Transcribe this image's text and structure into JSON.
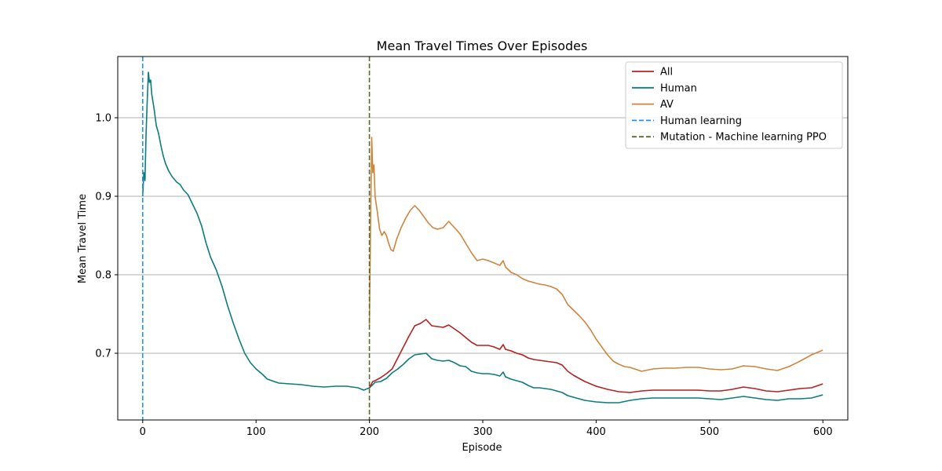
{
  "chart_data": {
    "type": "line",
    "title": "Mean Travel Times Over Episodes",
    "xlabel": "Episode",
    "ylabel": "Mean Travel Time",
    "xlim": [
      -22,
      622
    ],
    "ylim": [
      0.615,
      1.078
    ],
    "xticks": [
      0,
      100,
      200,
      300,
      400,
      500,
      600
    ],
    "yticks": [
      0.7,
      0.8,
      0.9,
      1.0
    ],
    "ytick_labels": [
      "0.7",
      "0.8",
      "0.9",
      "1.0"
    ],
    "grid": "y-major",
    "legend_position": "upper-right",
    "series": [
      {
        "name": "Human",
        "color": "#0e7c7b",
        "points": [
          [
            0,
            0.9
          ],
          [
            1,
            0.93
          ],
          [
            2,
            0.92
          ],
          [
            3,
            0.98
          ],
          [
            4,
            1.02
          ],
          [
            5,
            1.058
          ],
          [
            6,
            1.045
          ],
          [
            7,
            1.048
          ],
          [
            8,
            1.03
          ],
          [
            10,
            1.012
          ],
          [
            12,
            0.99
          ],
          [
            14,
            0.98
          ],
          [
            16,
            0.965
          ],
          [
            18,
            0.952
          ],
          [
            20,
            0.942
          ],
          [
            23,
            0.932
          ],
          [
            26,
            0.925
          ],
          [
            30,
            0.918
          ],
          [
            33,
            0.915
          ],
          [
            36,
            0.908
          ],
          [
            40,
            0.902
          ],
          [
            44,
            0.89
          ],
          [
            48,
            0.878
          ],
          [
            52,
            0.862
          ],
          [
            56,
            0.84
          ],
          [
            60,
            0.822
          ],
          [
            65,
            0.806
          ],
          [
            70,
            0.785
          ],
          [
            75,
            0.76
          ],
          [
            80,
            0.738
          ],
          [
            85,
            0.718
          ],
          [
            90,
            0.7
          ],
          [
            95,
            0.688
          ],
          [
            100,
            0.68
          ],
          [
            105,
            0.674
          ],
          [
            110,
            0.667
          ],
          [
            120,
            0.662
          ],
          [
            130,
            0.661
          ],
          [
            140,
            0.66
          ],
          [
            150,
            0.658
          ],
          [
            160,
            0.657
          ],
          [
            170,
            0.658
          ],
          [
            180,
            0.658
          ],
          [
            190,
            0.656
          ],
          [
            195,
            0.653
          ],
          [
            200,
            0.656
          ],
          [
            203,
            0.66
          ],
          [
            205,
            0.663
          ],
          [
            210,
            0.664
          ],
          [
            215,
            0.668
          ],
          [
            220,
            0.675
          ],
          [
            225,
            0.68
          ],
          [
            230,
            0.686
          ],
          [
            235,
            0.693
          ],
          [
            240,
            0.698
          ],
          [
            245,
            0.699
          ],
          [
            250,
            0.7
          ],
          [
            255,
            0.693
          ],
          [
            260,
            0.691
          ],
          [
            265,
            0.69
          ],
          [
            270,
            0.691
          ],
          [
            275,
            0.688
          ],
          [
            280,
            0.684
          ],
          [
            285,
            0.683
          ],
          [
            290,
            0.677
          ],
          [
            295,
            0.675
          ],
          [
            300,
            0.674
          ],
          [
            305,
            0.674
          ],
          [
            310,
            0.673
          ],
          [
            315,
            0.671
          ],
          [
            318,
            0.676
          ],
          [
            320,
            0.67
          ],
          [
            325,
            0.667
          ],
          [
            330,
            0.665
          ],
          [
            335,
            0.663
          ],
          [
            340,
            0.659
          ],
          [
            345,
            0.656
          ],
          [
            350,
            0.656
          ],
          [
            355,
            0.655
          ],
          [
            360,
            0.654
          ],
          [
            365,
            0.652
          ],
          [
            370,
            0.65
          ],
          [
            375,
            0.646
          ],
          [
            380,
            0.644
          ],
          [
            385,
            0.642
          ],
          [
            390,
            0.64
          ],
          [
            400,
            0.638
          ],
          [
            410,
            0.637
          ],
          [
            420,
            0.637
          ],
          [
            430,
            0.64
          ],
          [
            440,
            0.642
          ],
          [
            450,
            0.643
          ],
          [
            460,
            0.643
          ],
          [
            470,
            0.643
          ],
          [
            480,
            0.643
          ],
          [
            490,
            0.643
          ],
          [
            500,
            0.642
          ],
          [
            510,
            0.641
          ],
          [
            520,
            0.643
          ],
          [
            530,
            0.645
          ],
          [
            540,
            0.643
          ],
          [
            550,
            0.641
          ],
          [
            560,
            0.64
          ],
          [
            570,
            0.642
          ],
          [
            580,
            0.642
          ],
          [
            590,
            0.643
          ],
          [
            600,
            0.647
          ]
        ]
      },
      {
        "name": "All",
        "color": "#b22222",
        "points": [
          [
            200,
            0.656
          ],
          [
            203,
            0.664
          ],
          [
            205,
            0.665
          ],
          [
            210,
            0.669
          ],
          [
            215,
            0.674
          ],
          [
            220,
            0.68
          ],
          [
            225,
            0.694
          ],
          [
            230,
            0.708
          ],
          [
            235,
            0.722
          ],
          [
            240,
            0.735
          ],
          [
            245,
            0.738
          ],
          [
            250,
            0.743
          ],
          [
            255,
            0.735
          ],
          [
            260,
            0.734
          ],
          [
            265,
            0.733
          ],
          [
            270,
            0.736
          ],
          [
            275,
            0.731
          ],
          [
            280,
            0.726
          ],
          [
            285,
            0.72
          ],
          [
            290,
            0.714
          ],
          [
            295,
            0.71
          ],
          [
            300,
            0.71
          ],
          [
            305,
            0.71
          ],
          [
            310,
            0.708
          ],
          [
            315,
            0.705
          ],
          [
            318,
            0.711
          ],
          [
            320,
            0.705
          ],
          [
            325,
            0.703
          ],
          [
            330,
            0.7
          ],
          [
            335,
            0.698
          ],
          [
            340,
            0.694
          ],
          [
            345,
            0.692
          ],
          [
            350,
            0.691
          ],
          [
            355,
            0.69
          ],
          [
            360,
            0.689
          ],
          [
            365,
            0.688
          ],
          [
            370,
            0.685
          ],
          [
            375,
            0.677
          ],
          [
            380,
            0.672
          ],
          [
            385,
            0.668
          ],
          [
            390,
            0.664
          ],
          [
            400,
            0.658
          ],
          [
            410,
            0.654
          ],
          [
            420,
            0.651
          ],
          [
            430,
            0.65
          ],
          [
            440,
            0.652
          ],
          [
            450,
            0.653
          ],
          [
            460,
            0.653
          ],
          [
            470,
            0.653
          ],
          [
            480,
            0.653
          ],
          [
            490,
            0.653
          ],
          [
            500,
            0.652
          ],
          [
            510,
            0.652
          ],
          [
            520,
            0.654
          ],
          [
            530,
            0.657
          ],
          [
            540,
            0.655
          ],
          [
            550,
            0.652
          ],
          [
            560,
            0.651
          ],
          [
            570,
            0.653
          ],
          [
            580,
            0.655
          ],
          [
            590,
            0.656
          ],
          [
            600,
            0.661
          ]
        ]
      },
      {
        "name": "AV",
        "color": "#cd853f",
        "points": [
          [
            200,
            0.735
          ],
          [
            201,
            0.86
          ],
          [
            202,
            0.975
          ],
          [
            203,
            0.93
          ],
          [
            204,
            0.94
          ],
          [
            205,
            0.9
          ],
          [
            207,
            0.88
          ],
          [
            209,
            0.858
          ],
          [
            211,
            0.85
          ],
          [
            213,
            0.855
          ],
          [
            215,
            0.85
          ],
          [
            217,
            0.84
          ],
          [
            219,
            0.832
          ],
          [
            221,
            0.83
          ],
          [
            224,
            0.845
          ],
          [
            228,
            0.86
          ],
          [
            232,
            0.872
          ],
          [
            236,
            0.882
          ],
          [
            240,
            0.888
          ],
          [
            244,
            0.882
          ],
          [
            248,
            0.874
          ],
          [
            252,
            0.866
          ],
          [
            256,
            0.86
          ],
          [
            260,
            0.858
          ],
          [
            265,
            0.86
          ],
          [
            270,
            0.868
          ],
          [
            275,
            0.86
          ],
          [
            280,
            0.852
          ],
          [
            285,
            0.84
          ],
          [
            290,
            0.828
          ],
          [
            295,
            0.818
          ],
          [
            300,
            0.82
          ],
          [
            305,
            0.818
          ],
          [
            310,
            0.815
          ],
          [
            315,
            0.812
          ],
          [
            318,
            0.818
          ],
          [
            320,
            0.81
          ],
          [
            325,
            0.803
          ],
          [
            330,
            0.8
          ],
          [
            335,
            0.795
          ],
          [
            340,
            0.792
          ],
          [
            345,
            0.79
          ],
          [
            350,
            0.788
          ],
          [
            355,
            0.787
          ],
          [
            360,
            0.785
          ],
          [
            365,
            0.782
          ],
          [
            370,
            0.775
          ],
          [
            375,
            0.762
          ],
          [
            380,
            0.755
          ],
          [
            385,
            0.748
          ],
          [
            390,
            0.74
          ],
          [
            395,
            0.73
          ],
          [
            400,
            0.718
          ],
          [
            405,
            0.708
          ],
          [
            410,
            0.698
          ],
          [
            415,
            0.69
          ],
          [
            420,
            0.686
          ],
          [
            425,
            0.683
          ],
          [
            430,
            0.682
          ],
          [
            440,
            0.677
          ],
          [
            450,
            0.68
          ],
          [
            460,
            0.681
          ],
          [
            470,
            0.681
          ],
          [
            480,
            0.682
          ],
          [
            490,
            0.682
          ],
          [
            500,
            0.68
          ],
          [
            510,
            0.679
          ],
          [
            520,
            0.68
          ],
          [
            530,
            0.684
          ],
          [
            540,
            0.683
          ],
          [
            550,
            0.68
          ],
          [
            560,
            0.678
          ],
          [
            570,
            0.683
          ],
          [
            580,
            0.69
          ],
          [
            590,
            0.698
          ],
          [
            600,
            0.704
          ]
        ]
      }
    ],
    "vlines": [
      {
        "name": "Human learning",
        "x": 0,
        "color": "#1e90ff",
        "style": "dashed"
      },
      {
        "name": "Mutation - Machine learning PPO",
        "x": 200,
        "color": "#556b2f",
        "style": "dashed"
      }
    ],
    "legend": [
      {
        "label": "All",
        "color": "#b22222",
        "style": "solid"
      },
      {
        "label": "Human",
        "color": "#0e7c7b",
        "style": "solid"
      },
      {
        "label": "AV",
        "color": "#cd853f",
        "style": "solid"
      },
      {
        "label": "Human learning",
        "color": "#1e90ff",
        "style": "dashed"
      },
      {
        "label": "Mutation - Machine learning PPO",
        "color": "#556b2f",
        "style": "dashed"
      }
    ]
  }
}
